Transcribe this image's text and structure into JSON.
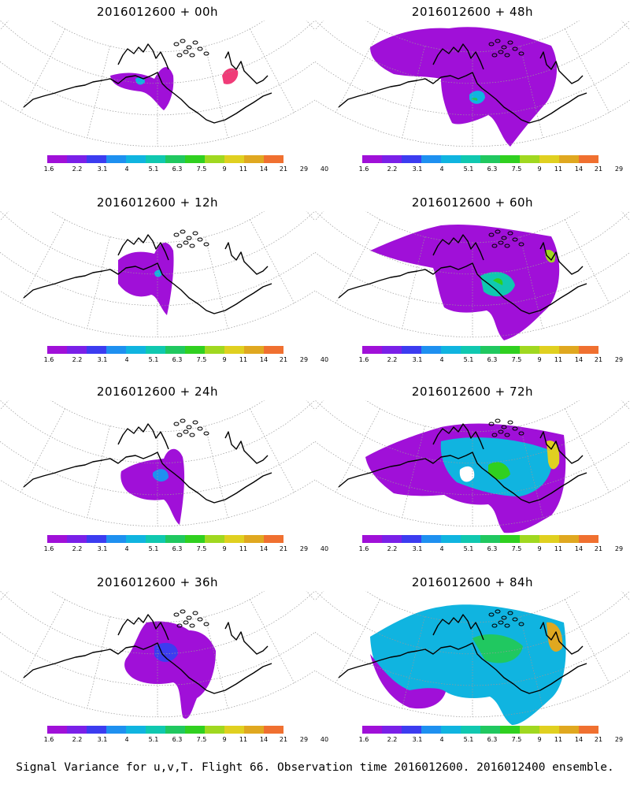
{
  "figure": {
    "caption": "Signal Variance for u,v,T. Flight 66. Observation time 2016012600. 2016012400 ensemble."
  },
  "panels": [
    {
      "title": "2016012600 + 00h",
      "lead_hours": 0
    },
    {
      "title": "2016012600 + 48h",
      "lead_hours": 48
    },
    {
      "title": "2016012600 + 12h",
      "lead_hours": 12
    },
    {
      "title": "2016012600 + 60h",
      "lead_hours": 60
    },
    {
      "title": "2016012600 + 24h",
      "lead_hours": 24
    },
    {
      "title": "2016012600 + 72h",
      "lead_hours": 72
    },
    {
      "title": "2016012600 + 36h",
      "lead_hours": 36
    },
    {
      "title": "2016012600 + 84h",
      "lead_hours": 84
    }
  ],
  "colorbar": {
    "labels": [
      "1.6",
      "2.2",
      "3.1",
      "4",
      "5.1",
      "6.3",
      "7.5",
      "9",
      "11",
      "14",
      "21",
      "29",
      "40"
    ],
    "colors": [
      "#a010d8",
      "#7a20e8",
      "#3c3cf0",
      "#1e90f0",
      "#10b4e0",
      "#10c8b0",
      "#20c860",
      "#30d020",
      "#a0d820",
      "#e0d020",
      "#e0a820",
      "#f07030",
      "#f03c78",
      "#f01478"
    ]
  }
}
